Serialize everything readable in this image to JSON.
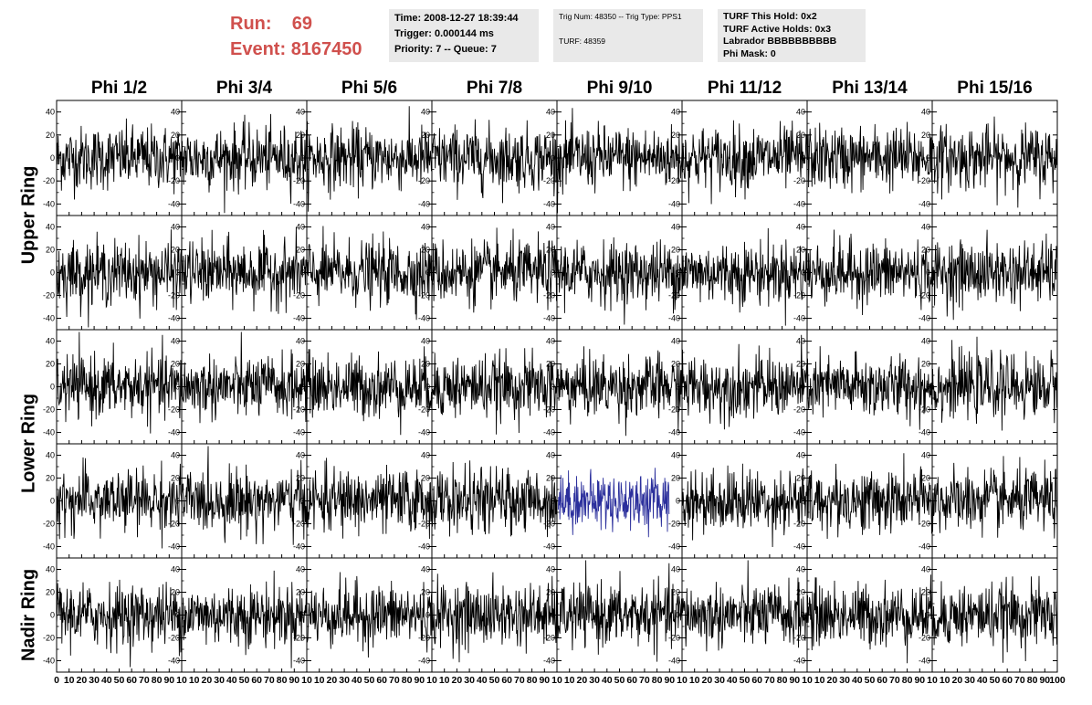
{
  "run_info": {
    "run_label": "Run:",
    "run_value": "69",
    "event_label": "Event:",
    "event_value": "8167450"
  },
  "time_box": {
    "line1": "Time: 2008-12-27 18:39:44",
    "line2": "Trigger: 0.000144 ms",
    "line3": "Priority: 7 -- Queue: 7"
  },
  "trig_box": {
    "line1": "Trig Num: 48350 -- Trig Type: PPS1",
    "line2": "TURF: 48359"
  },
  "turf_box": {
    "line1": "TURF This Hold: 0x2",
    "line2": "TURF Active Holds: 0x3",
    "line3": "Labrador BBBBBBBBBB",
    "line4": "Phi Mask: 0"
  },
  "columns": [
    "Phi 1/2",
    "Phi 3/4",
    "Phi 5/6",
    "Phi 7/8",
    "Phi 9/10",
    "Phi 11/12",
    "Phi 13/14",
    "Phi 15/16"
  ],
  "rows": [
    {
      "label": "Upper Ring",
      "rows_spanned": 2
    },
    {
      "label": "Lower Ring",
      "rows_spanned": 2
    },
    {
      "label": "Nadir Ring",
      "rows_spanned": 1
    }
  ],
  "colors": {
    "run_text": "#d0504d",
    "waveform": "#000000",
    "highlight_waveform": "#2b2f9c",
    "info_box_bg": "#e9e9e9"
  },
  "chart_data": {
    "type": "line",
    "grid": "8 columns x 5 rows of waveform panels",
    "xlim": [
      0,
      100
    ],
    "ylim": [
      -50,
      50
    ],
    "y_ticks": [
      -40,
      -20,
      0,
      20,
      40
    ],
    "x_ticks": [
      0,
      10,
      20,
      30,
      40,
      50,
      60,
      70,
      80,
      90,
      100
    ],
    "x_tick_labels_first_column": "0 10 20 30 40 50 60 70 80 90 10",
    "x_tick_labels_middle_columns": "10 20 30 40 50 60 70 80 90 10",
    "x_tick_labels_last_column": "10 20 30 40 50 60 70 80 90 100",
    "highlighted_panel": {
      "row": 3,
      "col": 4,
      "x_range": [
        0,
        90
      ],
      "amplitude": 25
    },
    "typical_amplitude": 25
  }
}
